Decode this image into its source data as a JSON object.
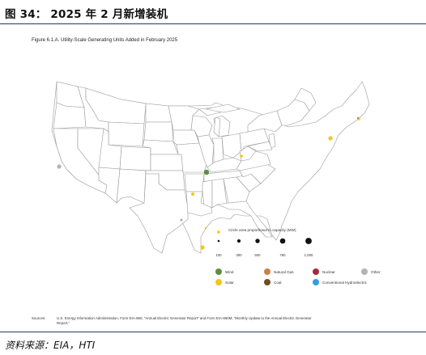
{
  "header": {
    "title": "图 34：  2025 年 2 月新增装机"
  },
  "figure": {
    "title": "Figure 6.1.A. Utility-Scale Generating Units Added in February 2025"
  },
  "size_legend": {
    "title": "Circle area proportional to capacity (MW)",
    "labels": [
      "100",
      "300",
      "500",
      "750",
      "1,000"
    ],
    "values_mw": [
      100,
      300,
      500,
      750,
      1000
    ]
  },
  "legend": {
    "items": [
      {
        "label": "Wind",
        "color": "#5d8f3c"
      },
      {
        "label": "Natural Gas",
        "color": "#c98245"
      },
      {
        "label": "Nuclear",
        "color": "#a9283b"
      },
      {
        "label": "Other",
        "color": "#b3b3b3"
      },
      {
        "label": "Solar",
        "color": "#f5c518"
      },
      {
        "label": "Coal",
        "color": "#6b4f1d"
      },
      {
        "label": "Conventional Hydroelectric",
        "color": "#2f9fe0"
      }
    ]
  },
  "additions": [
    {
      "technology": "Wind",
      "color": "#5d8f3c"
    },
    {
      "technology": "Solar",
      "color": "#f5c518"
    },
    {
      "technology": "Solar",
      "color": "#f5c518"
    },
    {
      "technology": "Solar",
      "color": "#f5c518"
    },
    {
      "technology": "Solar",
      "color": "#f5c518"
    },
    {
      "technology": "Solar",
      "color": "#f5c518"
    },
    {
      "technology": "Solar",
      "color": "#f5c518"
    },
    {
      "technology": "Solar",
      "color": "#f5c518"
    },
    {
      "technology": "Other",
      "color": "#b3b3b3"
    },
    {
      "technology": "Other",
      "color": "#b3b3b3"
    },
    {
      "technology": "Natural Gas",
      "color": "#c98245"
    }
  ],
  "sources": {
    "label": "Sources:",
    "text": "U.S. Energy Information Administration, Form EIA-860, \"Annual Electric Generator Report\" and Form EIA-860M, \"Monthly Update to the Annual Electric Generator Report.\""
  },
  "footer": {
    "source": "资料来源：EIA，HTI"
  }
}
